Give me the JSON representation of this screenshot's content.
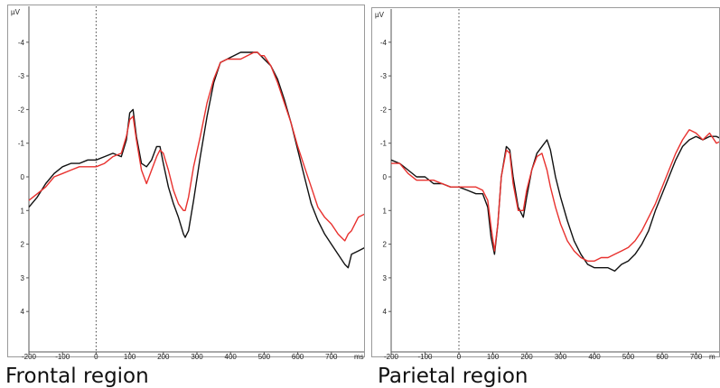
{
  "chart_data": [
    {
      "type": "line",
      "caption": "Frontal region",
      "ylabel": "µV",
      "xlabel": "ms",
      "xlim": [
        -200,
        800
      ],
      "ylim": [
        5,
        -5
      ],
      "y_inverted": true,
      "onset_marker_x": 0,
      "x_ticks": [
        -200,
        -100,
        0,
        100,
        200,
        300,
        400,
        500,
        600,
        700
      ],
      "x_tick_labels": [
        "-200",
        "-100",
        "0",
        "100",
        "200",
        "300",
        "400",
        "500",
        "600",
        "700"
      ],
      "y_ticks": [
        -4,
        -3,
        -2,
        -1,
        0,
        1,
        2,
        3,
        4
      ],
      "y_tick_labels": [
        "-4",
        "-3",
        "-2",
        "-1",
        "0",
        "1",
        "2",
        "3",
        "4"
      ],
      "series": [
        {
          "color": "#111111",
          "x": [
            -200,
            -175,
            -150,
            -125,
            -100,
            -75,
            -50,
            -25,
            0,
            25,
            50,
            75,
            90,
            100,
            110,
            120,
            135,
            150,
            165,
            180,
            190,
            200,
            215,
            230,
            245,
            260,
            265,
            275,
            290,
            310,
            330,
            350,
            370,
            390,
            410,
            430,
            450,
            470,
            480,
            490,
            500,
            520,
            540,
            560,
            580,
            600,
            620,
            640,
            660,
            680,
            700,
            720,
            740,
            750,
            760,
            780,
            800
          ],
          "y": [
            0.9,
            0.6,
            0.2,
            -0.1,
            -0.3,
            -0.4,
            -0.4,
            -0.5,
            -0.5,
            -0.6,
            -0.7,
            -0.6,
            -1.1,
            -1.9,
            -2.0,
            -1.2,
            -0.4,
            -0.3,
            -0.5,
            -0.9,
            -0.9,
            -0.4,
            0.3,
            0.8,
            1.2,
            1.7,
            1.8,
            1.6,
            0.7,
            -0.6,
            -1.8,
            -2.8,
            -3.4,
            -3.5,
            -3.6,
            -3.7,
            -3.7,
            -3.7,
            -3.7,
            -3.6,
            -3.5,
            -3.3,
            -2.9,
            -2.3,
            -1.6,
            -0.8,
            0.0,
            0.8,
            1.3,
            1.7,
            2.0,
            2.3,
            2.6,
            2.7,
            2.3,
            2.2,
            2.1
          ]
        },
        {
          "color": "#e8312e",
          "x": [
            -200,
            -175,
            -150,
            -125,
            -100,
            -75,
            -50,
            -25,
            0,
            25,
            50,
            75,
            90,
            100,
            110,
            120,
            135,
            150,
            165,
            180,
            190,
            200,
            215,
            230,
            245,
            260,
            265,
            275,
            290,
            310,
            330,
            350,
            370,
            390,
            410,
            430,
            450,
            470,
            480,
            490,
            500,
            520,
            540,
            560,
            580,
            600,
            620,
            640,
            660,
            680,
            700,
            720,
            740,
            750,
            760,
            780,
            800
          ],
          "y": [
            0.7,
            0.5,
            0.3,
            0.0,
            -0.1,
            -0.2,
            -0.3,
            -0.3,
            -0.3,
            -0.4,
            -0.6,
            -0.7,
            -1.2,
            -1.7,
            -1.8,
            -1.1,
            -0.2,
            0.2,
            -0.2,
            -0.6,
            -0.8,
            -0.7,
            -0.2,
            0.4,
            0.8,
            1.0,
            1.0,
            0.6,
            -0.3,
            -1.2,
            -2.2,
            -2.9,
            -3.4,
            -3.5,
            -3.5,
            -3.5,
            -3.6,
            -3.7,
            -3.7,
            -3.6,
            -3.6,
            -3.3,
            -2.8,
            -2.2,
            -1.6,
            -0.9,
            -0.3,
            0.3,
            0.9,
            1.2,
            1.4,
            1.7,
            1.9,
            1.7,
            1.6,
            1.2,
            1.1
          ]
        }
      ]
    },
    {
      "type": "line",
      "caption": "Parietal region",
      "ylabel": "µV",
      "xlabel": "m",
      "xlim": [
        -200,
        800
      ],
      "ylim": [
        5,
        -5
      ],
      "y_inverted": true,
      "onset_marker_x": 0,
      "x_ticks": [
        -200,
        -100,
        0,
        100,
        200,
        300,
        400,
        500,
        600,
        700
      ],
      "x_tick_labels": [
        "-200",
        "-100",
        "0",
        "100",
        "200",
        "300",
        "400",
        "500",
        "600",
        "700"
      ],
      "y_ticks": [
        -4,
        -3,
        -2,
        -1,
        0,
        1,
        2,
        3,
        4
      ],
      "y_tick_labels": [
        "-4",
        "-3",
        "-2",
        "-1",
        "0",
        "1",
        "2",
        "3",
        "4"
      ],
      "series": [
        {
          "color": "#111111",
          "x": [
            -200,
            -175,
            -150,
            -125,
            -100,
            -75,
            -50,
            -25,
            0,
            25,
            50,
            70,
            85,
            95,
            105,
            115,
            125,
            140,
            150,
            160,
            175,
            190,
            200,
            215,
            230,
            245,
            260,
            270,
            285,
            300,
            320,
            340,
            360,
            380,
            400,
            420,
            440,
            460,
            480,
            500,
            520,
            540,
            560,
            580,
            600,
            620,
            640,
            660,
            680,
            700,
            720,
            740,
            760,
            780,
            800
          ],
          "y": [
            -0.5,
            -0.4,
            -0.2,
            0.0,
            0.0,
            0.2,
            0.2,
            0.3,
            0.3,
            0.4,
            0.5,
            0.5,
            0.9,
            1.8,
            2.3,
            1.4,
            0.0,
            -0.9,
            -0.8,
            0.0,
            0.9,
            1.2,
            0.6,
            -0.2,
            -0.7,
            -0.9,
            -1.1,
            -0.8,
            0.0,
            0.6,
            1.3,
            1.9,
            2.3,
            2.6,
            2.7,
            2.7,
            2.7,
            2.8,
            2.6,
            2.5,
            2.3,
            2.0,
            1.6,
            1.0,
            0.5,
            0.0,
            -0.5,
            -0.9,
            -1.1,
            -1.2,
            -1.1,
            -1.2,
            -1.2,
            -1.1,
            -1.0
          ]
        },
        {
          "color": "#e8312e",
          "x": [
            -200,
            -175,
            -150,
            -125,
            -100,
            -75,
            -50,
            -25,
            0,
            25,
            50,
            70,
            85,
            95,
            105,
            115,
            125,
            140,
            150,
            160,
            175,
            190,
            200,
            215,
            230,
            245,
            260,
            270,
            285,
            300,
            320,
            340,
            360,
            380,
            400,
            420,
            440,
            460,
            480,
            500,
            520,
            540,
            560,
            580,
            600,
            620,
            640,
            660,
            680,
            700,
            720,
            740,
            760,
            780,
            800
          ],
          "y": [
            -0.4,
            -0.4,
            -0.1,
            0.1,
            0.1,
            0.1,
            0.2,
            0.3,
            0.3,
            0.3,
            0.3,
            0.4,
            0.7,
            1.5,
            2.2,
            1.4,
            0.0,
            -0.8,
            -0.7,
            0.2,
            1.0,
            1.0,
            0.4,
            -0.2,
            -0.6,
            -0.7,
            -0.2,
            0.3,
            0.9,
            1.4,
            1.9,
            2.2,
            2.4,
            2.5,
            2.5,
            2.4,
            2.4,
            2.3,
            2.2,
            2.1,
            1.9,
            1.6,
            1.2,
            0.8,
            0.3,
            -0.2,
            -0.7,
            -1.1,
            -1.4,
            -1.3,
            -1.1,
            -1.3,
            -1.0,
            -1.1,
            -0.6
          ]
        }
      ]
    }
  ]
}
